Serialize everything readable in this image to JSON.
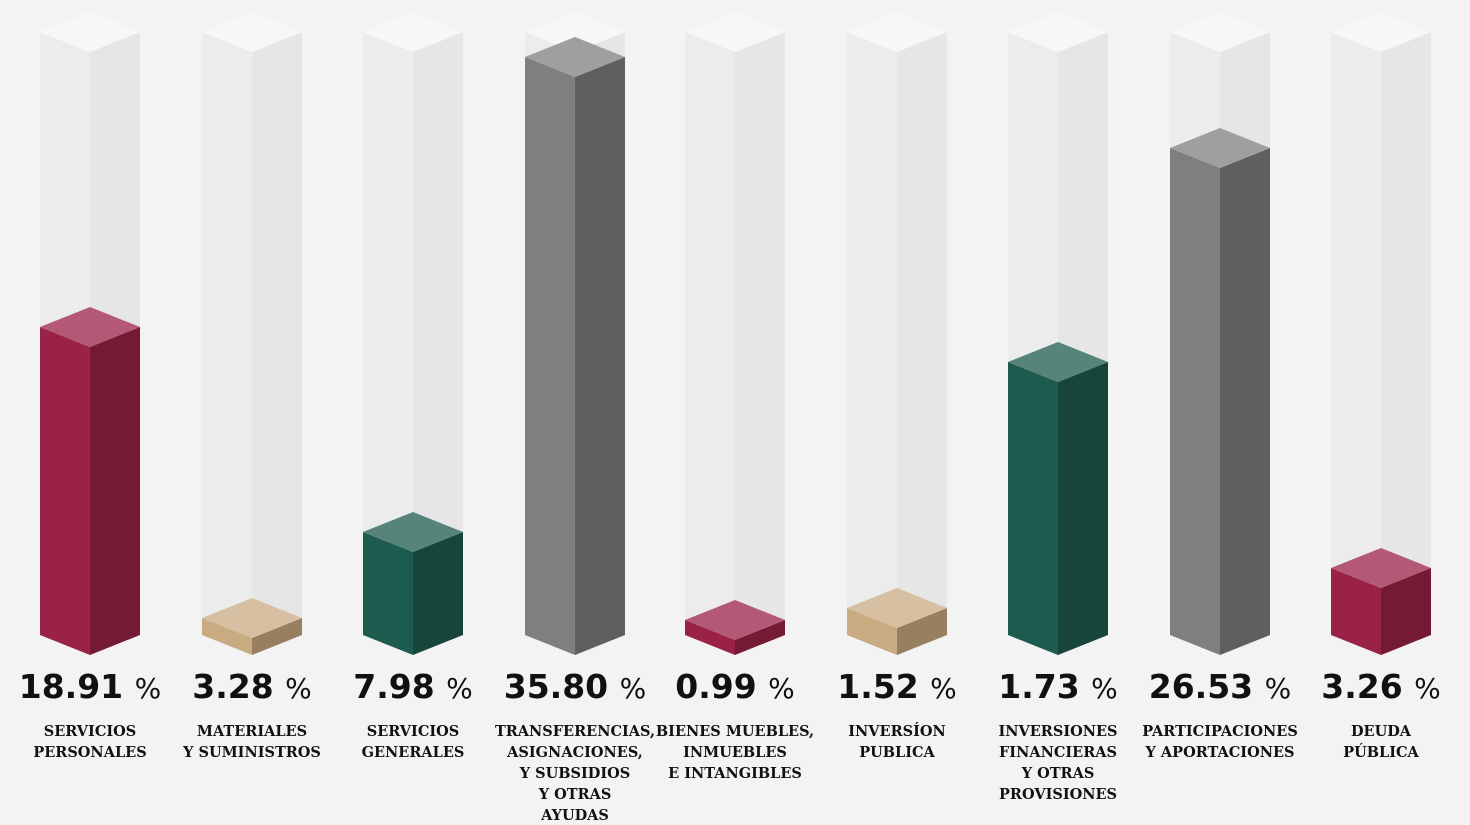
{
  "items": [
    {
      "value": "18.91",
      "unit": "%",
      "label": [
        "SERVICIOS",
        "PERSONALES"
      ],
      "color": "#9b2247"
    },
    {
      "value": "3.28",
      "unit": "%",
      "label": [
        "MATERIALES",
        "Y SUMINISTROS"
      ],
      "color": "#c9ab82"
    },
    {
      "value": "7.98",
      "unit": "%",
      "label": [
        "SERVICIOS",
        "GENERALES"
      ],
      "color": "#1e5b4f"
    },
    {
      "value": "35.80",
      "unit": "%",
      "label": [
        "TRANSFERENCIAS,",
        "ASIGNACIONES,",
        "Y SUBSIDIOS",
        "Y OTRAS",
        "AYUDAS"
      ],
      "color": "#7f7f80"
    },
    {
      "value": "0.99",
      "unit": "%",
      "label": [
        "BIENES MUEBLES,",
        "INMUEBLES",
        "E INTANGIBLES"
      ],
      "color": "#9b2247"
    },
    {
      "value": "1.52",
      "unit": "%",
      "label": [
        "INVERSÍON",
        "PUBLICA"
      ],
      "color": "#c9ab82"
    },
    {
      "value": "1.73",
      "unit": "%",
      "label": [
        "INVERSIONES",
        "FINANCIERAS",
        "Y OTRAS",
        "PROVISIONES"
      ],
      "color": "#1e5b4f"
    },
    {
      "value": "26.53",
      "unit": "%",
      "label": [
        "PARTICIPACIONES",
        "Y APORTACIONES"
      ],
      "color": "#7f7f80"
    },
    {
      "value": "3.26",
      "unit": "%",
      "label": [
        "DEUDA",
        "PÚBLICA"
      ],
      "color": "#9b2247"
    }
  ]
}
